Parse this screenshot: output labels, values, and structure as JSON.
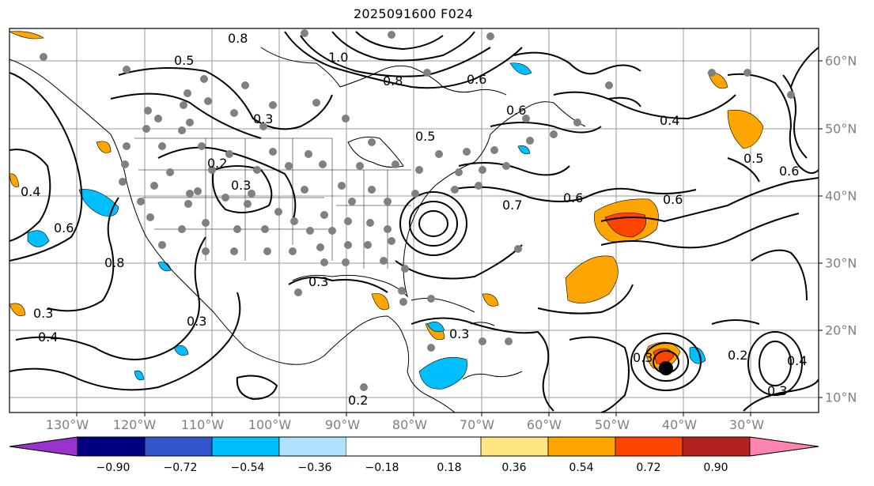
{
  "title": "2025091600 F024",
  "longitude_labels": [
    "130°W",
    "120°W",
    "110°W",
    "100°W",
    "90°W",
    "80°W",
    "70°W",
    "60°W",
    "50°W",
    "40°W",
    "30°W"
  ],
  "latitude_labels": [
    "60°N",
    "50°N",
    "40°N",
    "30°N",
    "20°N",
    "10°N"
  ],
  "contour_labels": [
    "0.8",
    "0.5",
    "1.0",
    "0.3",
    "0.2",
    "0.3",
    "0.4",
    "0.6",
    "0.8",
    "0.3",
    "0.4",
    "0.3",
    "0.3",
    "0.2",
    "0.5",
    "0.6",
    "0.7",
    "0.6",
    "0.8",
    "0.6",
    "0.4",
    "0.5",
    "0.6",
    "0.6",
    "0.3",
    "0.3",
    "0.4",
    "0.2",
    "0.3"
  ],
  "colorbar": {
    "ticks": [
      "−0.90",
      "−0.72",
      "−0.54",
      "−0.36",
      "−0.18",
      "0.18",
      "0.36",
      "0.54",
      "0.72",
      "0.90"
    ],
    "colors": [
      "#9933cc",
      "#000080",
      "#3355cc",
      "#00bfff",
      "#aee2ff",
      "#ffffff",
      "#ffe680",
      "#ffa500",
      "#ff4500",
      "#b22222",
      "#ff85b0"
    ]
  }
}
